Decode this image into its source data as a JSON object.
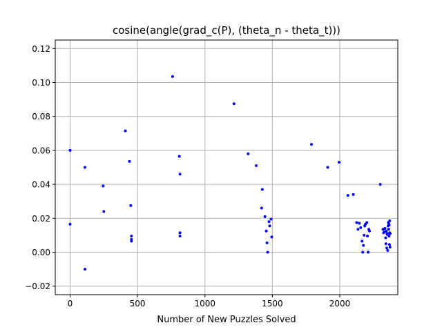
{
  "chart_data": {
    "type": "scatter",
    "title": "cosine(angle(grad_c(P), (theta_n - theta_t)))",
    "xlabel": "Number of New Puzzles Solved",
    "ylabel": "",
    "xlim": [
      -110,
      2430
    ],
    "ylim": [
      -0.025,
      0.125
    ],
    "xticks": [
      0,
      500,
      1000,
      1500,
      2000
    ],
    "yticks": [
      -0.02,
      0.0,
      0.02,
      0.04,
      0.06,
      0.08,
      0.1,
      0.12
    ],
    "xtick_labels": [
      "0",
      "500",
      "1000",
      "1500",
      "2000"
    ],
    "ytick_labels": [
      "−0.02",
      "0.00",
      "0.02",
      "0.04",
      "0.06",
      "0.08",
      "0.10",
      "0.12"
    ],
    "grid": true,
    "marker_color": "#0000ff",
    "points": [
      [
        0,
        0.06
      ],
      [
        0,
        0.0165
      ],
      [
        110,
        0.05
      ],
      [
        110,
        -0.01
      ],
      [
        245,
        0.039
      ],
      [
        250,
        0.024
      ],
      [
        410,
        0.0715
      ],
      [
        440,
        0.0535
      ],
      [
        450,
        0.0275
      ],
      [
        455,
        0.0095
      ],
      [
        455,
        0.0075
      ],
      [
        455,
        0.0065
      ],
      [
        760,
        0.1035
      ],
      [
        810,
        0.0565
      ],
      [
        815,
        0.046
      ],
      [
        815,
        0.0115
      ],
      [
        815,
        0.0095
      ],
      [
        1215,
        0.0875
      ],
      [
        1320,
        0.058
      ],
      [
        1380,
        0.051
      ],
      [
        1420,
        0.026
      ],
      [
        1425,
        0.037
      ],
      [
        1445,
        0.021
      ],
      [
        1455,
        0.0125
      ],
      [
        1460,
        0.0055
      ],
      [
        1465,
        0.0
      ],
      [
        1475,
        0.018
      ],
      [
        1480,
        0.0155
      ],
      [
        1490,
        0.0195
      ],
      [
        1495,
        0.009
      ],
      [
        1790,
        0.0635
      ],
      [
        1910,
        0.05
      ],
      [
        1995,
        0.053
      ],
      [
        2060,
        0.0335
      ],
      [
        2100,
        0.034
      ],
      [
        2125,
        0.0175
      ],
      [
        2135,
        0.0135
      ],
      [
        2145,
        0.017
      ],
      [
        2155,
        0.0145
      ],
      [
        2165,
        0.0065
      ],
      [
        2170,
        0.0
      ],
      [
        2175,
        0.004
      ],
      [
        2180,
        0.01
      ],
      [
        2185,
        0.0155
      ],
      [
        2190,
        0.0165
      ],
      [
        2200,
        0.0175
      ],
      [
        2205,
        0.0095
      ],
      [
        2210,
        0.0
      ],
      [
        2215,
        0.0135
      ],
      [
        2220,
        0.0125
      ],
      [
        2300,
        0.04
      ],
      [
        2320,
        0.0135
      ],
      [
        2325,
        0.0115
      ],
      [
        2330,
        0.012
      ],
      [
        2335,
        0.014
      ],
      [
        2340,
        0.0085
      ],
      [
        2342,
        0.005
      ],
      [
        2345,
        0.0125
      ],
      [
        2348,
        0.0025
      ],
      [
        2350,
        0.011
      ],
      [
        2352,
        0.0105
      ],
      [
        2355,
        0.001
      ],
      [
        2358,
        0.0155
      ],
      [
        2360,
        0.0175
      ],
      [
        2362,
        0.0135
      ],
      [
        2364,
        0.0165
      ],
      [
        2365,
        0.0095
      ],
      [
        2366,
        0.016
      ],
      [
        2368,
        0.0045
      ],
      [
        2369,
        0.0115
      ],
      [
        2370,
        0.0185
      ],
      [
        2372,
        0.003
      ],
      [
        2374,
        0.011
      ]
    ]
  }
}
